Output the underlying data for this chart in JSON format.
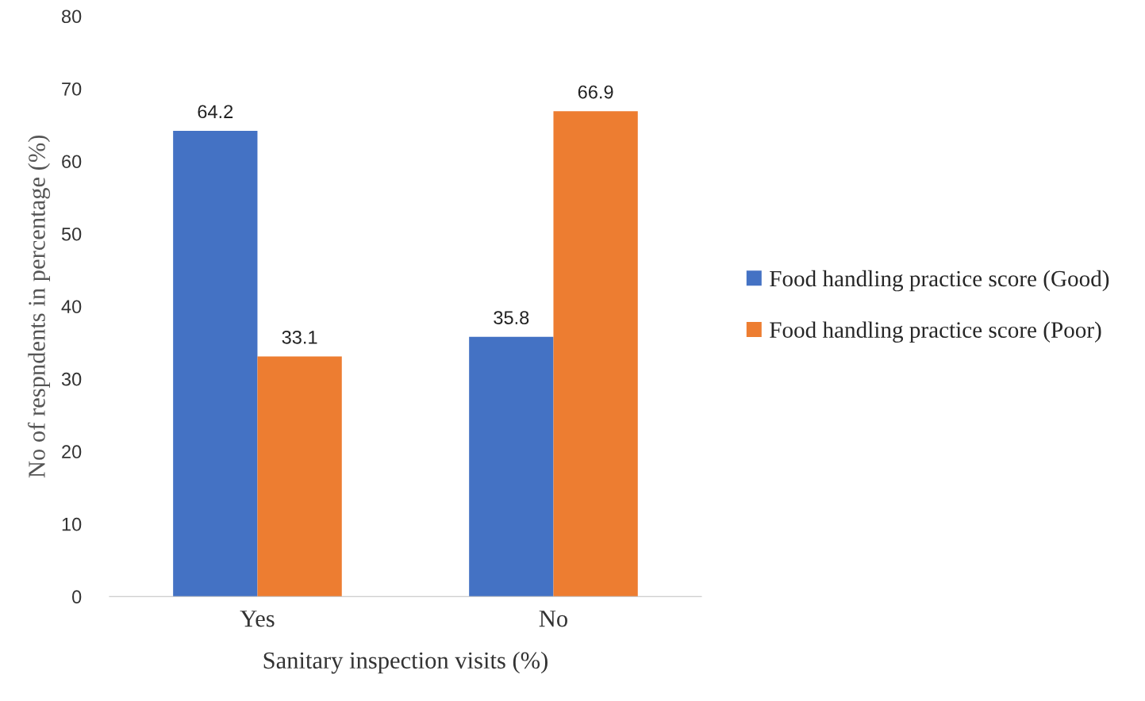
{
  "chart_data": {
    "type": "bar",
    "xlabel": "Sanitary inspection visits (%)",
    "ylabel": "No of respndents in percentage (%)",
    "categories": [
      "Yes",
      "No"
    ],
    "series": [
      {
        "name": "Food handling practice score (Good)",
        "color": "#4472c4",
        "values": [
          64.2,
          35.8
        ]
      },
      {
        "name": "Food handling practice score (Poor)",
        "color": "#ed7d31",
        "values": [
          33.1,
          66.9
        ]
      }
    ],
    "ylim": [
      0,
      80
    ],
    "yticks": [
      0,
      10,
      20,
      30,
      40,
      50,
      60,
      70,
      80
    ],
    "data_labels": true,
    "grid": false,
    "legend": "right"
  }
}
